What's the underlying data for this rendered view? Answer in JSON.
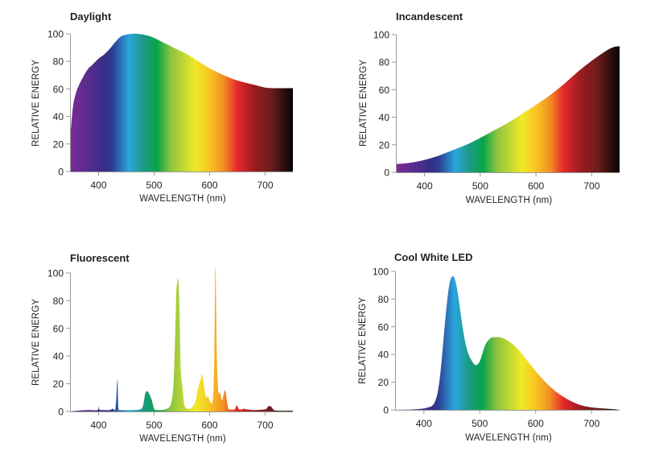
{
  "spectrum_colors": [
    {
      "nm": 350,
      "color": "#7b2a96"
    },
    {
      "nm": 380,
      "color": "#5a2c8e"
    },
    {
      "nm": 410,
      "color": "#362d88"
    },
    {
      "nm": 425,
      "color": "#2e3b90"
    },
    {
      "nm": 455,
      "color": "#2aa7de"
    },
    {
      "nm": 480,
      "color": "#1c9a86"
    },
    {
      "nm": 505,
      "color": "#06a44a"
    },
    {
      "nm": 530,
      "color": "#8cc43f"
    },
    {
      "nm": 575,
      "color": "#f0e928"
    },
    {
      "nm": 600,
      "color": "#f8c522"
    },
    {
      "nm": 625,
      "color": "#f28f22"
    },
    {
      "nm": 650,
      "color": "#e4282b"
    },
    {
      "nm": 680,
      "color": "#9a1c1f"
    },
    {
      "nm": 710,
      "color": "#6e1d1c"
    },
    {
      "nm": 750,
      "color": "#050505"
    }
  ],
  "chart_data": [
    {
      "type": "area",
      "title": "Daylight",
      "xlabel": "WAVELENGTH (nm)",
      "ylabel": "RELATIVE ENERGY",
      "xlim": [
        350,
        750
      ],
      "ylim": [
        0,
        100
      ],
      "xticks": [
        400,
        500,
        600,
        700
      ],
      "yticks": [
        0,
        20,
        40,
        60,
        80,
        100
      ],
      "grid": false,
      "x": [
        350,
        352,
        355,
        360,
        365,
        370,
        380,
        390,
        400,
        410,
        420,
        430,
        440,
        450,
        460,
        470,
        480,
        490,
        500,
        520,
        540,
        560,
        580,
        600,
        620,
        640,
        660,
        680,
        700,
        720,
        740,
        750
      ],
      "y": [
        30,
        40,
        50,
        58,
        63,
        67,
        74,
        78,
        82,
        85,
        89,
        94,
        98,
        99.5,
        100,
        100,
        99.5,
        98.5,
        97,
        93,
        89,
        85,
        80,
        75,
        71,
        67.5,
        65,
        63,
        61,
        60.5,
        60.5,
        60.5
      ]
    },
    {
      "type": "area",
      "title": "Incandescent",
      "xlabel": "WAVELENGTH (nm)",
      "ylabel": "RELATIVE ENERGY",
      "xlim": [
        350,
        750
      ],
      "ylim": [
        0,
        100
      ],
      "xticks": [
        400,
        500,
        600,
        700
      ],
      "yticks": [
        0,
        20,
        40,
        60,
        80,
        100
      ],
      "grid": false,
      "x": [
        350,
        375,
        400,
        425,
        450,
        475,
        500,
        525,
        550,
        575,
        600,
        625,
        650,
        675,
        700,
        725,
        740,
        750
      ],
      "y": [
        6,
        7,
        9,
        12,
        16,
        20,
        25,
        30.5,
        36,
        42.5,
        49,
        56,
        64,
        73,
        81,
        88,
        91,
        91.5
      ]
    },
    {
      "type": "area",
      "title": "Fluorescent",
      "xlabel": "WAVELENGTH (nm)",
      "ylabel": "RELATIVE ENERGY",
      "xlim": [
        350,
        750
      ],
      "ylim": [
        0,
        100
      ],
      "xticks": [
        400,
        500,
        600,
        700
      ],
      "yticks": [
        0,
        20,
        40,
        60,
        80,
        100
      ],
      "grid": false,
      "x": [
        350,
        360,
        380,
        398,
        400,
        402,
        404,
        420,
        425,
        427,
        430,
        432,
        434,
        436,
        440,
        460,
        475,
        480,
        484,
        488,
        492,
        496,
        500,
        505,
        520,
        530,
        535,
        538,
        540,
        542,
        544,
        546,
        548,
        551,
        554,
        558,
        565,
        572,
        576,
        580,
        584,
        586,
        588,
        591,
        594,
        597,
        600,
        603,
        606,
        608,
        609,
        610,
        611,
        612,
        613,
        614,
        616,
        618,
        620,
        622,
        624,
        627,
        629,
        631,
        634,
        638,
        645,
        648,
        650,
        653,
        658,
        662,
        665,
        668,
        680,
        700,
        704,
        708,
        712,
        716,
        725,
        750
      ],
      "y": [
        0,
        0.5,
        1,
        1,
        3.5,
        1,
        1,
        1,
        2,
        1.5,
        1.5,
        10,
        23,
        2,
        1,
        1,
        1.5,
        4,
        13,
        14.5,
        12,
        8,
        2,
        1,
        1.5,
        5,
        20,
        55,
        85,
        94,
        94,
        70,
        30,
        18,
        6,
        2.5,
        2,
        5,
        10,
        18,
        23,
        27,
        24,
        15,
        10,
        11,
        8,
        6,
        9,
        30,
        60,
        100,
        100,
        70,
        40,
        25,
        13,
        14,
        12,
        8,
        10,
        15,
        14,
        8,
        2,
        1.5,
        1.5,
        4,
        4,
        1.5,
        1.5,
        2,
        1.5,
        1.5,
        1,
        1.5,
        3,
        4,
        3,
        1,
        0.5,
        0.5
      ]
    },
    {
      "type": "area",
      "title": "Cool White LED",
      "xlabel": "WAVELENGTH (nm)",
      "ylabel": "RELATIVE ENERGY",
      "xlim": [
        350,
        750
      ],
      "ylim": [
        0,
        100
      ],
      "xticks": [
        400,
        500,
        600,
        700
      ],
      "yticks": [
        0,
        20,
        40,
        60,
        80,
        100
      ],
      "grid": false,
      "x": [
        350,
        380,
        400,
        410,
        415,
        420,
        425,
        430,
        435,
        440,
        445,
        450,
        455,
        460,
        465,
        470,
        475,
        480,
        485,
        490,
        495,
        500,
        505,
        510,
        515,
        520,
        525,
        530,
        535,
        540,
        550,
        560,
        570,
        580,
        590,
        600,
        620,
        640,
        660,
        680,
        700,
        720,
        740,
        750
      ],
      "y": [
        0,
        0.3,
        1,
        2,
        3,
        6,
        13,
        28,
        50,
        72,
        89,
        96,
        95,
        86,
        72,
        58,
        47,
        40,
        36,
        33,
        32.5,
        35,
        41,
        47,
        50,
        52,
        52.5,
        52.5,
        52.5,
        52,
        50,
        47,
        43,
        38,
        33,
        28,
        19,
        12,
        7,
        3.5,
        1.8,
        1,
        0.4,
        0
      ]
    }
  ]
}
